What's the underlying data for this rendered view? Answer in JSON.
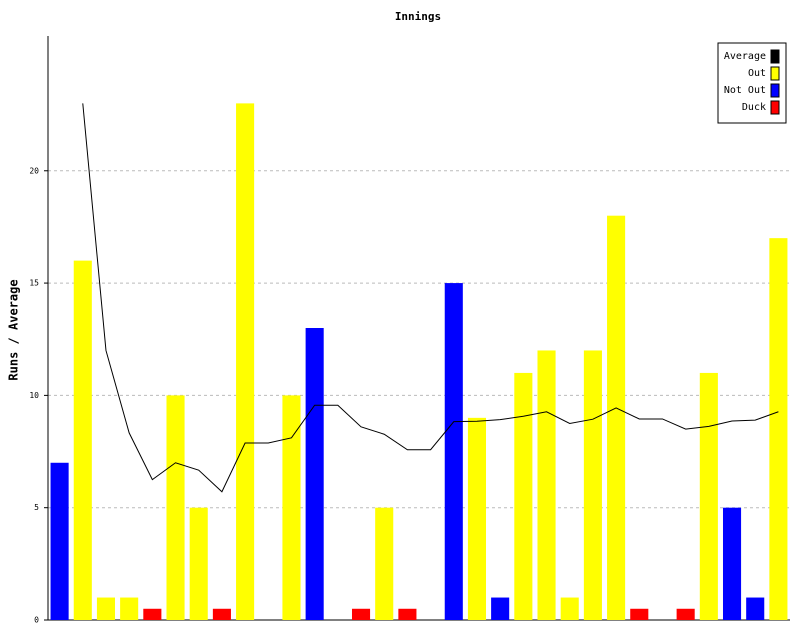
{
  "chart_data": {
    "type": "bar",
    "title": "Innings",
    "y_label": "Runs / Average",
    "series": [
      {
        "name": "Average",
        "color": "#000000",
        "type": "line",
        "values": [
          null,
          23,
          12,
          8.33,
          6.25,
          7,
          6.67,
          5.71,
          7.88,
          7.88,
          8.11,
          9.56,
          9.56,
          8.6,
          8.27,
          7.58,
          7.58,
          8.83,
          8.85,
          8.92,
          9.07,
          9.27,
          8.75,
          8.94,
          9.44,
          8.95,
          8.95,
          8.5,
          8.62,
          8.86,
          8.9,
          9.27
        ]
      },
      {
        "name": "Out",
        "color": "#ffff00",
        "values": [
          null,
          16,
          1,
          1,
          null,
          10,
          5,
          null,
          23,
          null,
          10,
          null,
          null,
          null,
          5,
          null,
          null,
          null,
          9,
          null,
          11,
          12,
          1,
          12,
          18,
          null,
          null,
          null,
          11,
          null,
          null,
          17
        ]
      },
      {
        "name": "Not Out",
        "color": "#0000ff",
        "values": [
          7,
          null,
          null,
          null,
          null,
          null,
          null,
          null,
          null,
          null,
          null,
          13,
          null,
          null,
          null,
          null,
          null,
          15,
          null,
          1,
          null,
          null,
          null,
          null,
          null,
          null,
          null,
          null,
          null,
          5,
          1,
          null
        ]
      },
      {
        "name": "Duck",
        "color": "#ff0000",
        "values": [
          null,
          null,
          null,
          null,
          0.5,
          null,
          null,
          0.5,
          null,
          null,
          null,
          null,
          null,
          0.5,
          null,
          0.5,
          null,
          null,
          null,
          null,
          null,
          null,
          null,
          null,
          null,
          0.5,
          null,
          0.5,
          null,
          null,
          null,
          null
        ]
      }
    ],
    "ylim": [
      0,
      26
    ],
    "yticks": [
      0,
      5,
      10,
      15,
      20
    ],
    "grid": true,
    "legend": "top-right"
  }
}
